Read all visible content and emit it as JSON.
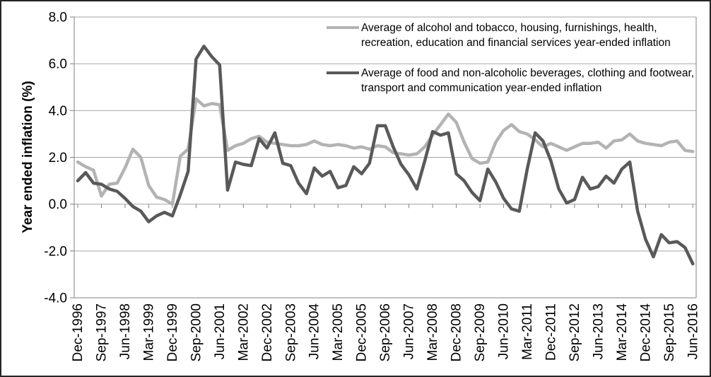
{
  "figure": {
    "ylabel": "Year ended inflation (%)"
  },
  "chart_data": {
    "type": "line",
    "title": "",
    "xlabel": "",
    "ylabel": "Year ended inflation (%)",
    "ylim": [
      -4.0,
      8.0
    ],
    "y_tick_step": 2.0,
    "y_tick_labels": [
      "8.0",
      "6.0",
      "4.0",
      "2.0",
      "0.0",
      "-2.0",
      "-4.0"
    ],
    "grid": true,
    "legend_position": "top-right-inside",
    "x_frequency": "quarterly",
    "x_tick_every": 3,
    "x_tick_labels": [
      "Dec-1996",
      "Sep-1997",
      "Jun-1998",
      "Mar-1999",
      "Dec-1999",
      "Sep-2000",
      "Jun-2001",
      "Mar-2002",
      "Dec-2002",
      "Sep-2003",
      "Jun-2004",
      "Mar-2005",
      "Dec-2005",
      "Sep-2006",
      "Jun-2007",
      "Mar-2008",
      "Dec-2008",
      "Sep-2009",
      "Jun-2010",
      "Mar-2011",
      "Dec-2011",
      "Sep-2012",
      "Jun-2013",
      "Mar-2014",
      "Dec-2014",
      "Sep-2015",
      "Jun-2016"
    ],
    "colors": {
      "grid": "#a6a6a6",
      "axis": "#808080",
      "border": "#262626",
      "text": "#000000"
    },
    "series": [
      {
        "name": "Average of alcohol and tobacco, housing, furnishings, health, recreation, education and financial services year-ended inflation",
        "color": "#b3b3b3",
        "values": [
          1.8,
          1.6,
          1.45,
          0.35,
          0.85,
          0.9,
          1.55,
          2.35,
          2.0,
          0.8,
          0.3,
          0.2,
          0.0,
          2.05,
          2.35,
          4.5,
          4.2,
          4.3,
          4.25,
          2.3,
          2.5,
          2.6,
          2.8,
          2.9,
          2.65,
          2.6,
          2.55,
          2.5,
          2.5,
          2.55,
          2.7,
          2.55,
          2.5,
          2.55,
          2.5,
          2.4,
          2.45,
          2.35,
          2.5,
          2.45,
          2.2,
          2.15,
          2.1,
          2.15,
          2.45,
          2.95,
          3.4,
          3.85,
          3.5,
          2.65,
          1.95,
          1.75,
          1.8,
          2.65,
          3.15,
          3.4,
          3.1,
          3.0,
          2.75,
          2.45,
          2.6,
          2.45,
          2.3,
          2.45,
          2.6,
          2.6,
          2.65,
          2.4,
          2.7,
          2.75,
          3.0,
          2.7,
          2.6,
          2.55,
          2.5,
          2.65,
          2.7,
          2.3,
          2.25
        ]
      },
      {
        "name": "Average of food and non-alcoholic beverages, clothing and footwear, transport and communication year-ended inflation",
        "color": "#595959",
        "values": [
          1.0,
          1.35,
          0.9,
          0.85,
          0.65,
          0.55,
          0.25,
          -0.1,
          -0.3,
          -0.75,
          -0.5,
          -0.35,
          -0.5,
          0.4,
          1.4,
          6.2,
          6.75,
          6.3,
          5.95,
          0.6,
          1.8,
          1.7,
          1.65,
          2.8,
          2.4,
          3.05,
          1.75,
          1.65,
          0.9,
          0.45,
          1.55,
          1.2,
          1.4,
          0.7,
          0.8,
          1.6,
          1.3,
          1.75,
          3.35,
          3.35,
          2.45,
          1.7,
          1.25,
          0.65,
          1.85,
          3.1,
          2.95,
          3.05,
          1.3,
          1.0,
          0.5,
          0.15,
          1.5,
          0.95,
          0.25,
          -0.2,
          -0.3,
          1.5,
          3.05,
          2.7,
          1.85,
          0.65,
          0.05,
          0.2,
          1.15,
          0.65,
          0.75,
          1.2,
          0.9,
          1.5,
          1.8,
          -0.3,
          -1.5,
          -2.25,
          -1.3,
          -1.65,
          -1.6,
          -1.85,
          -2.55
        ]
      }
    ]
  }
}
